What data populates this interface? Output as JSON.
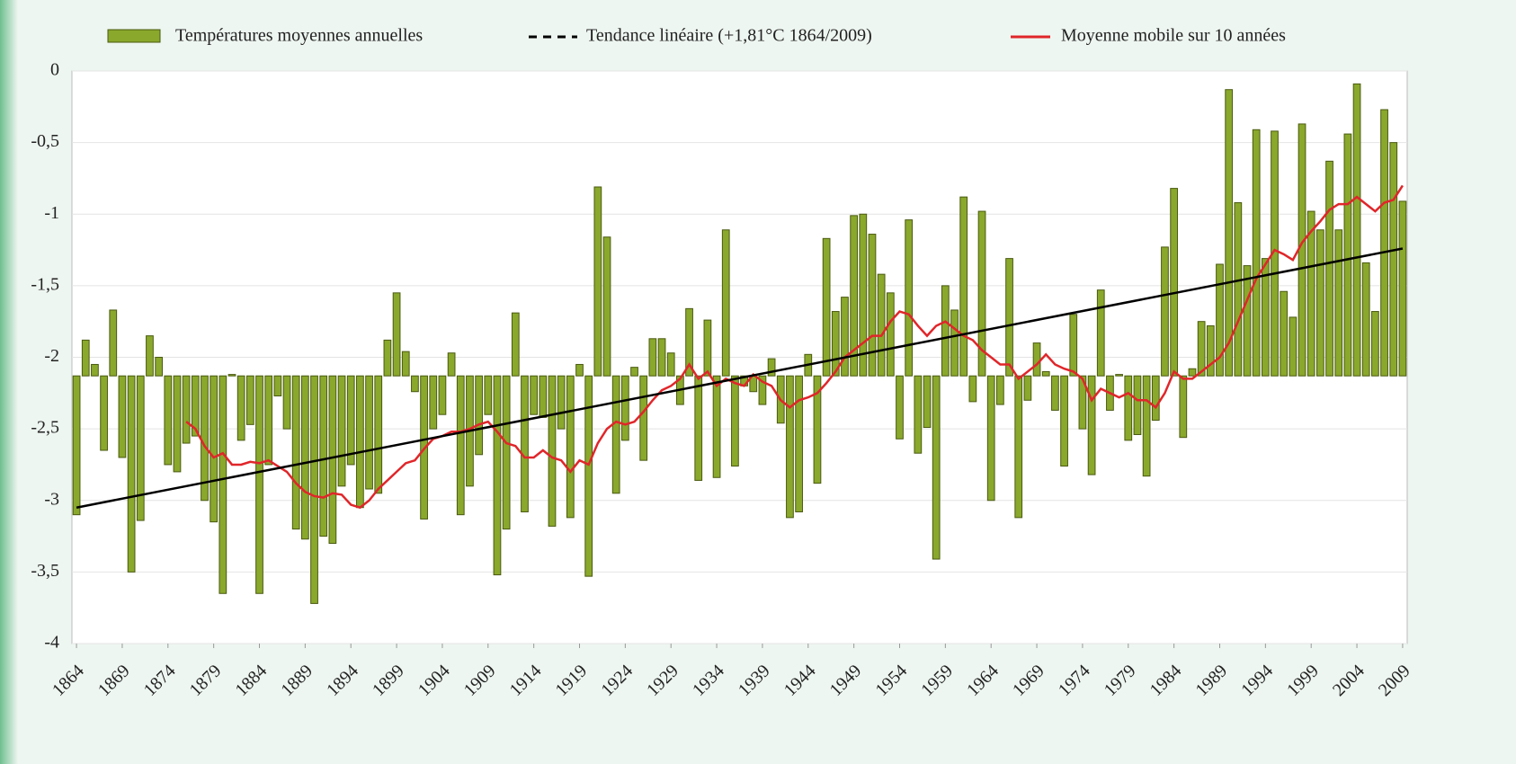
{
  "chart_data": {
    "type": "bar",
    "x": [
      1864,
      1865,
      1866,
      1867,
      1868,
      1869,
      1870,
      1871,
      1872,
      1873,
      1874,
      1875,
      1876,
      1877,
      1878,
      1879,
      1880,
      1881,
      1882,
      1883,
      1884,
      1885,
      1886,
      1887,
      1888,
      1889,
      1890,
      1891,
      1892,
      1893,
      1894,
      1895,
      1896,
      1897,
      1898,
      1899,
      1900,
      1901,
      1902,
      1903,
      1904,
      1905,
      1906,
      1907,
      1908,
      1909,
      1910,
      1911,
      1912,
      1913,
      1914,
      1915,
      1916,
      1917,
      1918,
      1919,
      1920,
      1921,
      1922,
      1923,
      1924,
      1925,
      1926,
      1927,
      1928,
      1929,
      1930,
      1931,
      1932,
      1933,
      1934,
      1935,
      1936,
      1937,
      1938,
      1939,
      1940,
      1941,
      1942,
      1943,
      1944,
      1945,
      1946,
      1947,
      1948,
      1949,
      1950,
      1951,
      1952,
      1953,
      1954,
      1955,
      1956,
      1957,
      1958,
      1959,
      1960,
      1961,
      1962,
      1963,
      1964,
      1965,
      1966,
      1967,
      1968,
      1969,
      1970,
      1971,
      1972,
      1973,
      1974,
      1975,
      1976,
      1977,
      1978,
      1979,
      1980,
      1981,
      1982,
      1983,
      1984,
      1985,
      1986,
      1987,
      1988,
      1989,
      1990,
      1991,
      1992,
      1993,
      1994,
      1995,
      1996,
      1997,
      1998,
      1999,
      2000,
      2001,
      2002,
      2003,
      2004,
      2005,
      2006,
      2007,
      2008,
      2009
    ],
    "baseline": -2.13,
    "series": [
      {
        "name": "Températures moyennes annuelles",
        "type": "bar",
        "color": "#8aa82c",
        "values": [
          -3.1,
          -1.88,
          -2.05,
          -2.65,
          -1.67,
          -2.7,
          -3.5,
          -3.14,
          -1.85,
          -2.0,
          -2.75,
          -2.8,
          -2.6,
          -2.55,
          -3.0,
          -3.15,
          -3.65,
          -2.12,
          -2.58,
          -2.47,
          -3.65,
          -2.75,
          -2.27,
          -2.5,
          -3.2,
          -3.27,
          -3.72,
          -3.25,
          -3.3,
          -2.9,
          -2.75,
          -3.05,
          -2.92,
          -2.95,
          -1.88,
          -1.55,
          -1.96,
          -2.24,
          -3.13,
          -2.5,
          -2.4,
          -1.97,
          -3.1,
          -2.9,
          -2.68,
          -2.4,
          -3.52,
          -3.2,
          -1.69,
          -3.08,
          -2.4,
          -2.42,
          -3.18,
          -2.5,
          -3.12,
          -2.05,
          -3.53,
          -0.81,
          -1.16,
          -2.95,
          -2.58,
          -2.07,
          -2.72,
          -1.87,
          -1.87,
          -1.97,
          -2.33,
          -1.66,
          -2.86,
          -1.74,
          -2.84,
          -1.11,
          -2.76,
          -2.2,
          -2.24,
          -2.33,
          -2.01,
          -2.46,
          -3.12,
          -3.08,
          -1.98,
          -2.88,
          -1.17,
          -1.68,
          -1.58,
          -1.01,
          -1.0,
          -1.14,
          -1.42,
          -1.55,
          -2.57,
          -1.04,
          -2.67,
          -2.49,
          -3.41,
          -1.5,
          -1.67,
          -0.88,
          -2.31,
          -0.98,
          -3.0,
          -2.33,
          -1.31,
          -3.12,
          -2.3,
          -1.9,
          -2.1,
          -2.37,
          -2.76,
          -1.7,
          -2.5,
          -2.82,
          -1.53,
          -2.37,
          -2.12,
          -2.58,
          -2.54,
          -2.83,
          -2.44,
          -1.23,
          -0.82,
          -2.56,
          -2.08,
          -1.75,
          -1.78,
          -1.35,
          -0.13,
          -0.92,
          -1.36,
          -0.41,
          -1.31,
          -0.42,
          -1.54,
          -1.72,
          -0.37,
          -0.98,
          -1.11,
          -0.63,
          -1.11,
          -0.44,
          -0.09,
          -1.34,
          -1.68,
          -0.27,
          -0.5,
          -0.91
        ]
      },
      {
        "name": "Moyenne mobile sur 10 années",
        "type": "line",
        "color": "#e0262a",
        "values": [
          null,
          null,
          null,
          null,
          null,
          null,
          null,
          null,
          null,
          null,
          null,
          null,
          -2.45,
          -2.5,
          -2.62,
          -2.7,
          -2.67,
          -2.75,
          -2.75,
          -2.73,
          -2.74,
          -2.72,
          -2.76,
          -2.8,
          -2.88,
          -2.94,
          -2.97,
          -2.98,
          -2.95,
          -2.96,
          -3.03,
          -3.05,
          -3.0,
          -2.92,
          -2.86,
          -2.8,
          -2.74,
          -2.72,
          -2.64,
          -2.57,
          -2.55,
          -2.52,
          -2.52,
          -2.5,
          -2.47,
          -2.45,
          -2.52,
          -2.6,
          -2.62,
          -2.7,
          -2.7,
          -2.65,
          -2.7,
          -2.72,
          -2.8,
          -2.72,
          -2.75,
          -2.6,
          -2.5,
          -2.45,
          -2.47,
          -2.45,
          -2.38,
          -2.3,
          -2.23,
          -2.2,
          -2.15,
          -2.05,
          -2.15,
          -2.1,
          -2.2,
          -2.15,
          -2.18,
          -2.2,
          -2.12,
          -2.17,
          -2.2,
          -2.3,
          -2.35,
          -2.3,
          -2.28,
          -2.25,
          -2.18,
          -2.1,
          -2.0,
          -1.95,
          -1.9,
          -1.85,
          -1.85,
          -1.75,
          -1.68,
          -1.7,
          -1.78,
          -1.85,
          -1.78,
          -1.75,
          -1.8,
          -1.85,
          -1.88,
          -1.95,
          -2.0,
          -2.05,
          -2.05,
          -2.15,
          -2.1,
          -2.05,
          -1.98,
          -2.05,
          -2.08,
          -2.1,
          -2.15,
          -2.3,
          -2.22,
          -2.25,
          -2.28,
          -2.25,
          -2.3,
          -2.3,
          -2.35,
          -2.25,
          -2.1,
          -2.15,
          -2.15,
          -2.1,
          -2.05,
          -2.0,
          -1.9,
          -1.75,
          -1.6,
          -1.45,
          -1.35,
          -1.25,
          -1.28,
          -1.32,
          -1.2,
          -1.12,
          -1.05,
          -0.97,
          -0.93,
          -0.93,
          -0.88,
          -0.93,
          -0.98,
          -0.92,
          -0.9,
          -0.8
        ]
      }
    ],
    "trend": {
      "name": "Tendance linéaire (+1,81°C 1864/2009)",
      "color": "#000000",
      "x": [
        1864,
        2009
      ],
      "values": [
        -3.05,
        -1.24
      ]
    },
    "xlim": [
      1863.5,
      2009.5
    ],
    "xticks": [
      1864,
      1869,
      1874,
      1879,
      1884,
      1889,
      1894,
      1899,
      1904,
      1909,
      1914,
      1919,
      1924,
      1929,
      1934,
      1939,
      1944,
      1949,
      1954,
      1959,
      1964,
      1969,
      1974,
      1979,
      1984,
      1989,
      1994,
      1999,
      2004,
      2009
    ],
    "ylim": [
      -4,
      0
    ],
    "yticks": [
      0,
      {
        "value": -0.5,
        "label": "-0,5"
      },
      -1,
      {
        "value": -1.5,
        "label": "-1,5"
      },
      -2,
      {
        "value": -2.5,
        "label": "-2,5"
      },
      -3,
      {
        "value": -3.5,
        "label": "-3,5"
      },
      -4
    ],
    "grid": true
  }
}
